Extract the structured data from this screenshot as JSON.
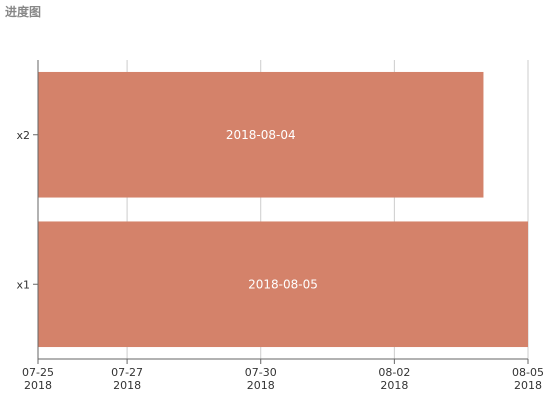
{
  "chart_data": {
    "type": "bar",
    "orientation": "horizontal",
    "title": "进度图",
    "categories": [
      "x1",
      "x2"
    ],
    "series": [
      {
        "values": [
          "2018-08-05",
          "2018-08-04"
        ],
        "labels": [
          "2018-08-05",
          "2018-08-04"
        ]
      }
    ],
    "xlim": [
      "2018-07-25",
      "2018-08-05"
    ],
    "x_ticks": [
      {
        "date": "2018-07-25",
        "line1": "07-25",
        "line2": "2018"
      },
      {
        "date": "2018-07-27",
        "line1": "07-27",
        "line2": "2018"
      },
      {
        "date": "2018-07-30",
        "line1": "07-30",
        "line2": "2018"
      },
      {
        "date": "2018-08-02",
        "line1": "08-02",
        "line2": "2018"
      },
      {
        "date": "2018-08-05",
        "line1": "08-05",
        "line2": "2018"
      }
    ],
    "bar_color": "#d4826a",
    "grid": true,
    "legend": "none"
  }
}
